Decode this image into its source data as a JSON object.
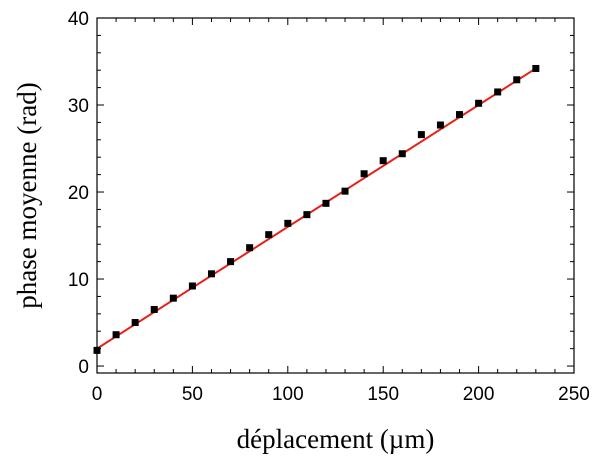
{
  "chart_data": {
    "type": "scatter",
    "xlabel": "déplacement (µm)",
    "ylabel": "phase moyenne (rad)",
    "xlim": [
      0,
      250
    ],
    "ylim": [
      -0.8,
      40
    ],
    "xticks": [
      0,
      50,
      100,
      150,
      200,
      250
    ],
    "yticks": [
      0,
      10,
      20,
      30,
      40
    ],
    "grid": false,
    "series": [
      {
        "kind": "points",
        "marker": "square",
        "color": "#000000",
        "x": [
          0,
          10,
          20,
          30,
          40,
          50,
          60,
          70,
          80,
          90,
          100,
          110,
          120,
          130,
          140,
          150,
          160,
          170,
          180,
          190,
          200,
          210,
          220,
          230
        ],
        "y": [
          1.8,
          3.6,
          5.0,
          6.5,
          7.8,
          9.2,
          10.6,
          12.0,
          13.6,
          15.1,
          16.4,
          17.4,
          18.7,
          20.1,
          22.1,
          23.6,
          24.4,
          26.6,
          27.7,
          28.9,
          30.2,
          31.5,
          32.9,
          34.2
        ]
      },
      {
        "kind": "fit-line",
        "color": "#e8201a",
        "x": [
          0,
          230
        ],
        "y": [
          2.0,
          34.2
        ]
      }
    ]
  }
}
